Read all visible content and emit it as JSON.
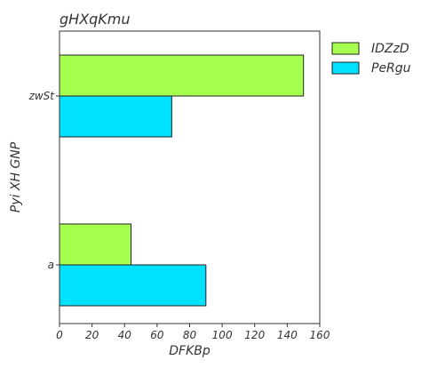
{
  "chart_data": {
    "type": "bar",
    "orientation": "horizontal",
    "title": "gHXqKmu",
    "xlabel": "DFKBp",
    "ylabel": "Pyi XH GNP",
    "categories": [
      "zwSt",
      "a"
    ],
    "series": [
      {
        "name": "IDZzD",
        "color": "#a5ff4f",
        "values": [
          150,
          44
        ]
      },
      {
        "name": "PeRgu",
        "color": "#00e0ff",
        "values": [
          69,
          90
        ]
      }
    ],
    "xlim": [
      0,
      160
    ],
    "xticks": [
      0,
      20,
      40,
      60,
      80,
      100,
      120,
      140,
      160
    ],
    "grid": false,
    "legend_position": "outside-top-right"
  }
}
